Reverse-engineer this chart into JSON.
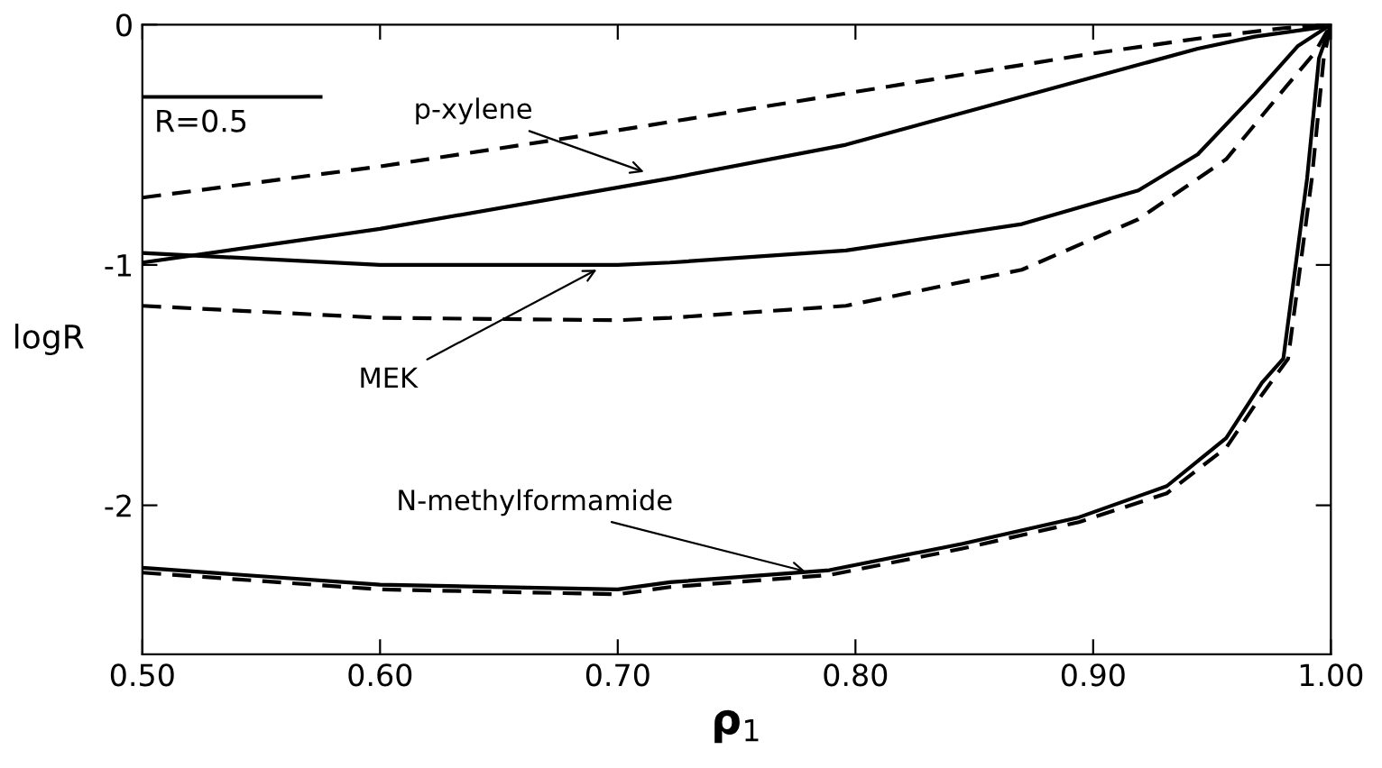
{
  "chart_data": {
    "type": "line",
    "xlabel": "ρ$_{1}$",
    "ylabel": "logR",
    "xlim": [
      0.5,
      1.0
    ],
    "ylim": [
      -2.62,
      0.0
    ],
    "xticks": [
      {
        "value": 0.5,
        "label": "0.50"
      },
      {
        "value": 0.6,
        "label": "0.60"
      },
      {
        "value": 0.7,
        "label": "0.70"
      },
      {
        "value": 0.8,
        "label": "0.80"
      },
      {
        "value": 0.9,
        "label": "0.90"
      },
      {
        "value": 1.0,
        "label": "1.00"
      }
    ],
    "yticks": [
      0,
      -1,
      -2
    ],
    "grid": false,
    "legend": false,
    "marker": "none",
    "series": [
      {
        "color": "#000000",
        "line_style": "dashed",
        "x": [
          0.5,
          0.6,
          0.7,
          0.8,
          0.9,
          0.95,
          0.98,
          1.0
        ],
        "values": [
          -0.72,
          -0.59,
          -0.44,
          -0.28,
          -0.12,
          -0.05,
          -0.015,
          0
        ]
      },
      {
        "color": "#000000",
        "line_style": "solid",
        "x": [
          0.5,
          0.55,
          0.6,
          0.722,
          0.796,
          0.87,
          0.944,
          0.968,
          0.997
        ],
        "values": [
          -0.99,
          -0.92,
          -0.85,
          -0.64,
          -0.5,
          -0.3,
          -0.1,
          -0.05,
          -0.01
        ]
      },
      {
        "color": "#000000",
        "line_style": "solid",
        "x": [
          0.5,
          0.6,
          0.7,
          0.722,
          0.796,
          0.87,
          0.919,
          0.944,
          0.968,
          0.986,
          1.0
        ],
        "values": [
          -0.95,
          -1.0,
          -1.0,
          -0.99,
          -0.94,
          -0.83,
          -0.69,
          -0.54,
          -0.29,
          -0.09,
          0
        ]
      },
      {
        "color": "#000000",
        "line_style": "dashed",
        "x": [
          0.5,
          0.6,
          0.7,
          0.722,
          0.796,
          0.87,
          0.919,
          0.956,
          0.981,
          0.993,
          1.0
        ],
        "values": [
          -1.17,
          -1.22,
          -1.23,
          -1.22,
          -1.17,
          -1.02,
          -0.81,
          -0.56,
          -0.26,
          -0.12,
          0
        ]
      },
      {
        "color": "#000000",
        "line_style": "solid",
        "x": [
          0.5,
          0.6,
          0.7,
          0.722,
          0.789,
          0.845,
          0.894,
          0.931,
          0.956,
          0.971,
          0.98,
          0.99,
          0.995,
          1.0
        ],
        "values": [
          -2.26,
          -2.33,
          -2.35,
          -2.32,
          -2.27,
          -2.16,
          -2.05,
          -1.92,
          -1.72,
          -1.49,
          -1.39,
          -0.64,
          -0.14,
          0
        ]
      },
      {
        "color": "#000000",
        "line_style": "dashed",
        "x": [
          0.5,
          0.6,
          0.7,
          0.722,
          0.789,
          0.845,
          0.894,
          0.931,
          0.956,
          0.971,
          0.982,
          0.992,
          0.997,
          1.0
        ],
        "values": [
          -2.28,
          -2.35,
          -2.37,
          -2.34,
          -2.29,
          -2.18,
          -2.07,
          -1.95,
          -1.76,
          -1.54,
          -1.39,
          -0.64,
          -0.14,
          0
        ]
      },
      {
        "name": "R=0.5",
        "color": "#000000",
        "line_style": "solid",
        "x": [
          0.5,
          0.575
        ],
        "values": [
          -0.301,
          -0.301
        ]
      }
    ],
    "annotations": [
      {
        "text": "p-xylene",
        "x": 0.713,
        "y": -0.62
      },
      {
        "text": "MEK",
        "x": 0.693,
        "y": -1.01
      },
      {
        "text": "N-methylformamide",
        "x": 0.781,
        "y": -2.28
      }
    ]
  }
}
